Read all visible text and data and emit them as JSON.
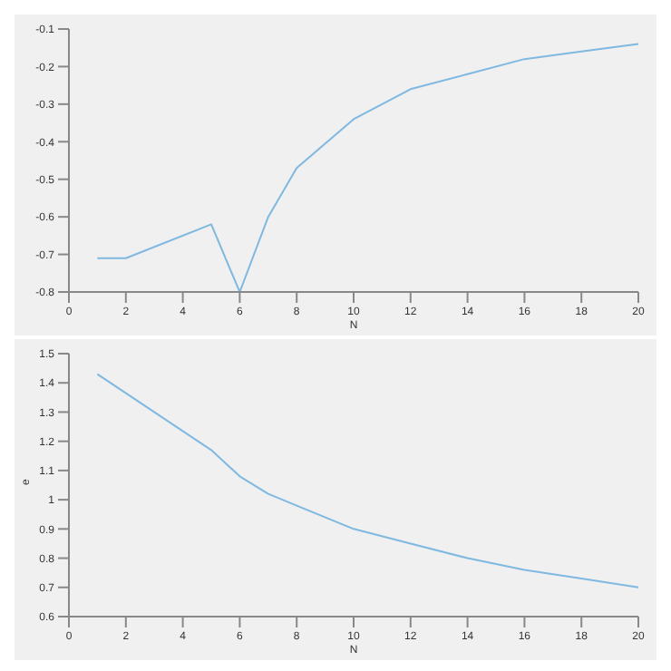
{
  "chart_data": [
    {
      "type": "line",
      "xlabel": "N",
      "x": [
        1,
        2,
        5,
        6,
        7,
        8,
        10,
        12,
        14,
        16,
        18,
        20
      ],
      "series": [
        {
          "color": "#7fb8e0",
          "values": [
            -0.71,
            -0.71,
            -0.62,
            -0.8,
            -0.6,
            -0.47,
            -0.34,
            -0.26,
            -0.22,
            -0.18,
            -0.16,
            -0.14
          ]
        }
      ],
      "xlim": [
        0,
        20
      ],
      "xticks": [
        0,
        2,
        4,
        6,
        8,
        10,
        12,
        14,
        16,
        18,
        20
      ],
      "ylim": [
        -0.8,
        -0.1
      ],
      "yticks": [
        -0.8,
        -0.7,
        -0.6,
        -0.5,
        -0.4,
        -0.3,
        -0.2,
        -0.1
      ],
      "grid": false,
      "legend": false,
      "marker": "none",
      "line_style": "solid"
    },
    {
      "type": "line",
      "xlabel": "N",
      "ylabel": "e",
      "x": [
        1,
        5,
        6,
        7,
        8,
        10,
        12,
        14,
        16,
        18,
        20
      ],
      "series": [
        {
          "color": "#7fb8e0",
          "values": [
            1.43,
            1.17,
            1.08,
            1.02,
            0.98,
            0.9,
            0.85,
            0.8,
            0.76,
            0.73,
            0.7
          ]
        }
      ],
      "xlim": [
        0,
        20
      ],
      "xticks": [
        0,
        2,
        4,
        6,
        8,
        10,
        12,
        14,
        16,
        18,
        20
      ],
      "ylim": [
        0.6,
        1.5
      ],
      "yticks": [
        0.6,
        0.7,
        0.8,
        0.9,
        1,
        1.1,
        1.2,
        1.3,
        1.4,
        1.5
      ],
      "grid": false,
      "legend": false,
      "marker": "none",
      "line_style": "solid"
    }
  ]
}
